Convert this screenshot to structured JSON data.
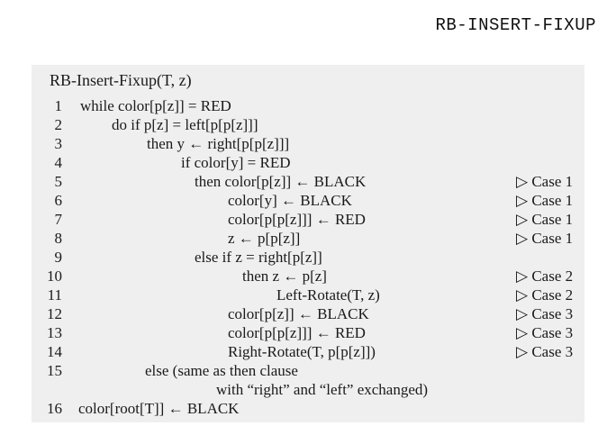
{
  "heading": "RB-INSERT-FIXUP",
  "procedure": {
    "signature": "RB-Insert-Fixup(T, z)",
    "lines": [
      {
        "num": "1",
        "code": "while color[p[z]] = RED",
        "comment": ""
      },
      {
        "num": "2",
        "code": "do if p[z] = left[p[p[z]]]",
        "comment": ""
      },
      {
        "num": "3",
        "code": "then y ← right[p[p[z]]]",
        "comment": ""
      },
      {
        "num": "4",
        "code": "if color[y] = RED",
        "comment": ""
      },
      {
        "num": "5",
        "code": "then color[p[z]] ← BLACK",
        "comment": "▷ Case 1"
      },
      {
        "num": "6",
        "code": "color[y] ← BLACK",
        "comment": "▷ Case 1"
      },
      {
        "num": "7",
        "code": "color[p[p[z]]] ← RED",
        "comment": "▷ Case 1"
      },
      {
        "num": "8",
        "code": "z ← p[p[z]]",
        "comment": "▷ Case 1"
      },
      {
        "num": "9",
        "code": "else if z = right[p[z]]",
        "comment": ""
      },
      {
        "num": "10",
        "code": "then z ← p[z]",
        "comment": "▷ Case 2"
      },
      {
        "num": "11",
        "code": "Left-Rotate(T, z)",
        "comment": "▷ Case 2"
      },
      {
        "num": "12",
        "code": "color[p[z]] ← BLACK",
        "comment": "▷ Case 3"
      },
      {
        "num": "13",
        "code": "color[p[p[z]]] ← RED",
        "comment": "▷ Case 3"
      },
      {
        "num": "14",
        "code": "Right-Rotate(T, p[p[z]])",
        "comment": "▷ Case 3"
      },
      {
        "num": "15",
        "code": "else (same as then clause",
        "comment": ""
      },
      {
        "num": "",
        "code": "with “right” and “left” exchanged)",
        "comment": ""
      },
      {
        "num": "16",
        "code": "color[root[T]] ← BLACK",
        "comment": ""
      }
    ]
  }
}
